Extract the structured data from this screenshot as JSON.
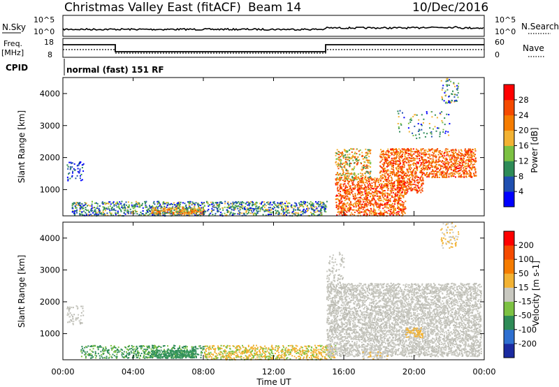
{
  "header": {
    "title": "Christmas Valley East (fitACF)",
    "beam": "Beam 14",
    "date": "10/Dec/2016"
  },
  "noise_panel": {
    "left_label": "N.Sky",
    "right_label": "N.Search",
    "left_ticks": [
      "10^5",
      "10^0"
    ],
    "right_ticks": [
      "10^5",
      "10^0"
    ]
  },
  "freq_panel": {
    "left_label_1": "Freq.",
    "left_label_2": "[MHz]",
    "right_label": "Nave",
    "left_ticks": [
      "18",
      "8"
    ],
    "right_ticks": [
      "60",
      "0"
    ]
  },
  "cpid": {
    "label": "CPID",
    "text": "normal (fast) 151 RF"
  },
  "chart_data": [
    {
      "type": "heatmap",
      "name": "power",
      "ylabel": "Slant Range [km]",
      "ylim": [
        180,
        4500
      ],
      "yticks": [
        "1000",
        "2000",
        "3000",
        "4000"
      ],
      "xlim": [
        "00:00",
        "24:00"
      ],
      "colorbar": {
        "label": "Power [dB]",
        "ticks": [
          "4",
          "8",
          "12",
          "16",
          "20",
          "24",
          "28"
        ],
        "colors": [
          "#0000ff",
          "#1f4fb0",
          "#2e8b57",
          "#7cc142",
          "#f2b233",
          "#f57c00",
          "#f54a00",
          "#ff0000"
        ]
      }
    },
    {
      "type": "heatmap",
      "name": "velocity",
      "ylabel": "Slant Range [km]",
      "ylim": [
        180,
        4500
      ],
      "yticks": [
        "1000",
        "2000",
        "3000",
        "4000"
      ],
      "xlim": [
        "00:00",
        "24:00"
      ],
      "colorbar": {
        "label": "Velocity [m s-1]",
        "ticks": [
          "200",
          "100",
          "50",
          "15",
          "-15",
          "-50",
          "-100",
          "-200"
        ],
        "colors": [
          "#1a2aa0",
          "#2e6fd0",
          "#2e8b57",
          "#7cc142",
          "#c8c8c0",
          "#f2b233",
          "#f57c00",
          "#f54a00",
          "#ff0000"
        ]
      }
    }
  ],
  "xaxis": {
    "label": "Time UT",
    "ticks": [
      "00:00",
      "04:00",
      "08:00",
      "12:00",
      "16:00",
      "20:00",
      "00:00"
    ]
  }
}
